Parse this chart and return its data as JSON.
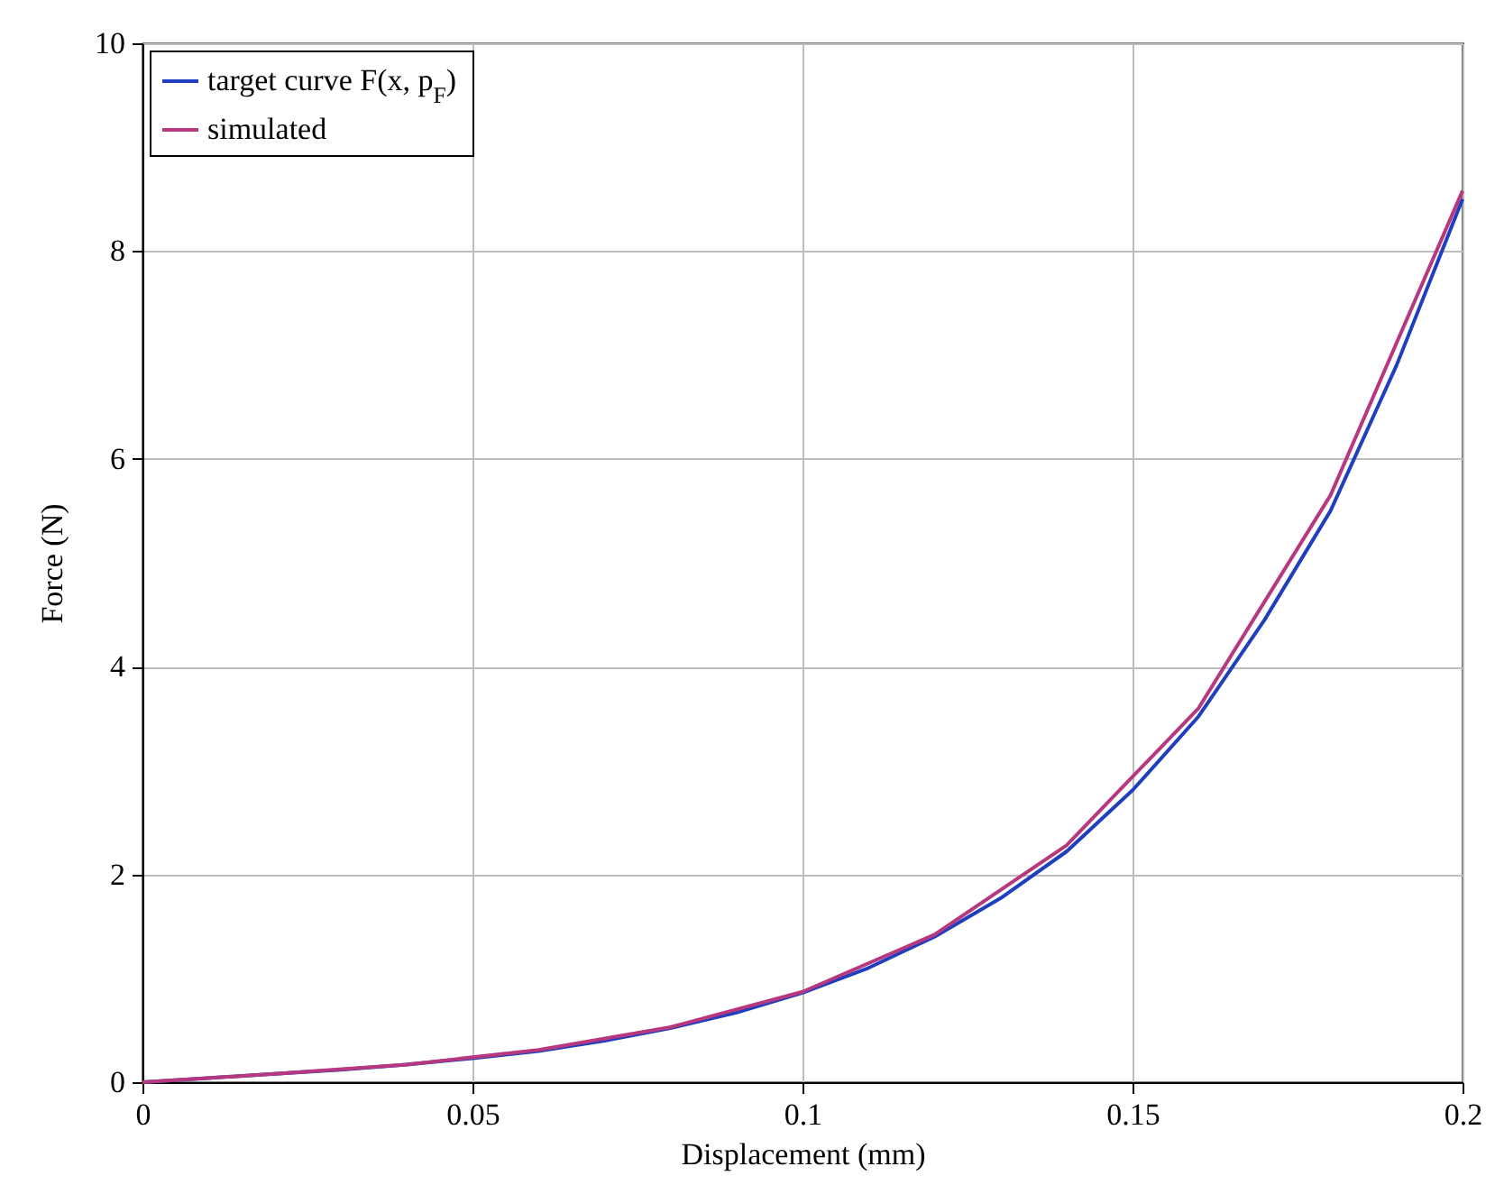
{
  "chart_data": {
    "type": "line",
    "xlabel": "Displacement (mm)",
    "ylabel": "Force (N)",
    "xlim": [
      0,
      0.2
    ],
    "ylim": [
      0,
      10
    ],
    "xticks": [
      0,
      0.05,
      0.1,
      0.15,
      0.2
    ],
    "yticks": [
      0,
      2,
      4,
      6,
      8,
      10
    ],
    "grid": true,
    "legend": "top left",
    "line_style": "solid",
    "marker": "none",
    "series": [
      {
        "name": "target curve F(x, p$_{F}$)",
        "color": "#1f3fbf",
        "x": [
          0,
          0.01,
          0.02,
          0.03,
          0.04,
          0.05,
          0.06,
          0.07,
          0.08,
          0.09,
          0.1,
          0.11,
          0.12,
          0.13,
          0.14,
          0.15,
          0.16,
          0.17,
          0.18,
          0.19,
          0.2
        ],
        "values": [
          0,
          0.04,
          0.08,
          0.12,
          0.17,
          0.23,
          0.3,
          0.4,
          0.52,
          0.67,
          0.86,
          1.1,
          1.4,
          1.77,
          2.22,
          2.81,
          3.52,
          4.45,
          5.5,
          6.9,
          8.5
        ]
      },
      {
        "name": "simulated",
        "color": "#b8387f",
        "x": [
          0,
          0.02,
          0.04,
          0.06,
          0.08,
          0.1,
          0.12,
          0.14,
          0.16,
          0.18,
          0.2
        ],
        "values": [
          0,
          0.08,
          0.17,
          0.31,
          0.53,
          0.87,
          1.42,
          2.28,
          3.6,
          5.65,
          8.58
        ]
      }
    ]
  }
}
